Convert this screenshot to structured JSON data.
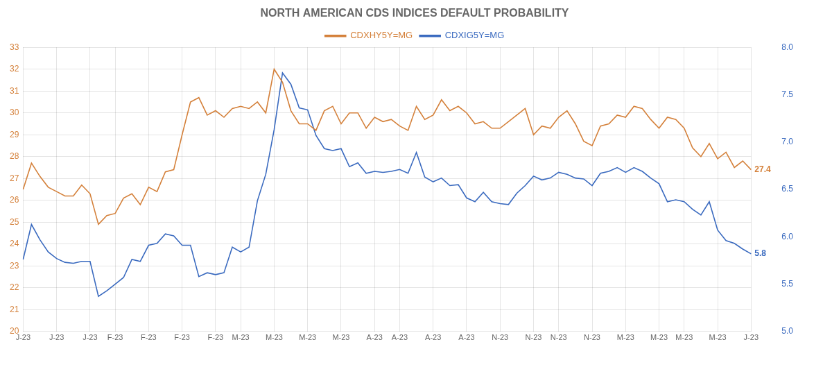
{
  "chart_data": {
    "type": "line",
    "title": "NORTH AMERICAN CDS INDICES DEFAULT PROBABILITY",
    "categories": [
      "J-23",
      null,
      null,
      null,
      "J-23",
      null,
      null,
      null,
      "J-23",
      null,
      null,
      "F-23",
      null,
      null,
      null,
      "F-23",
      null,
      null,
      null,
      "F-23",
      null,
      null,
      null,
      "F-23",
      null,
      null,
      "M-23",
      null,
      null,
      null,
      "M-23",
      null,
      null,
      null,
      "M-23",
      null,
      null,
      null,
      "M-23",
      null,
      null,
      null,
      "A-23",
      null,
      null,
      "A-23",
      null,
      null,
      null,
      "A-23",
      null,
      null,
      null,
      "A-23",
      null,
      null,
      null,
      "N-23",
      null,
      null,
      null,
      "N-23",
      null,
      null,
      "N-23",
      null,
      null,
      null,
      "N-23",
      null,
      null,
      null,
      "M-23",
      null,
      null,
      null,
      "M-23",
      null,
      null,
      "M-23",
      null,
      null,
      null,
      "M-23",
      null,
      null,
      null,
      "J-23"
    ],
    "series": [
      {
        "name": "CDXHY5Y=MG",
        "color": "#d4803a",
        "axis": "y",
        "values": [
          26.5,
          27.7,
          27.1,
          26.6,
          26.4,
          26.2,
          26.2,
          26.7,
          26.3,
          24.9,
          25.3,
          25.4,
          26.1,
          26.3,
          25.8,
          26.6,
          26.4,
          27.3,
          27.4,
          29.0,
          30.5,
          30.7,
          29.9,
          30.1,
          29.8,
          30.2,
          30.3,
          30.2,
          30.5,
          30.0,
          32.0,
          31.4,
          30.1,
          29.5,
          29.5,
          29.2,
          30.1,
          30.3,
          29.5,
          30.0,
          30.0,
          29.3,
          29.8,
          29.6,
          29.7,
          29.4,
          29.2,
          30.3,
          29.7,
          29.9,
          30.6,
          30.1,
          30.3,
          30.0,
          29.5,
          29.6,
          29.3,
          29.3,
          29.6,
          29.9,
          30.2,
          29.0,
          29.4,
          29.3,
          29.8,
          30.1,
          29.5,
          28.7,
          28.5,
          29.4,
          29.5,
          29.9,
          29.8,
          30.3,
          30.2,
          29.7,
          29.3,
          29.8,
          29.7,
          29.3,
          28.4,
          28.0,
          28.6,
          27.9,
          28.2,
          27.5,
          27.8,
          27.4
        ]
      },
      {
        "name": "CDXIG5Y=MG",
        "color": "#3a6abf",
        "axis": "y2",
        "values": [
          5.76,
          6.13,
          5.97,
          5.84,
          5.77,
          5.73,
          5.72,
          5.74,
          5.74,
          5.37,
          5.43,
          5.5,
          5.57,
          5.76,
          5.74,
          5.91,
          5.93,
          6.03,
          6.01,
          5.91,
          5.91,
          5.58,
          5.62,
          5.6,
          5.62,
          5.89,
          5.84,
          5.89,
          6.38,
          6.66,
          7.13,
          7.73,
          7.61,
          7.36,
          7.34,
          7.07,
          6.93,
          6.91,
          6.93,
          6.74,
          6.78,
          6.67,
          6.69,
          6.68,
          6.69,
          6.71,
          6.67,
          6.89,
          6.63,
          6.58,
          6.62,
          6.54,
          6.55,
          6.41,
          6.37,
          6.47,
          6.37,
          6.35,
          6.34,
          6.46,
          6.54,
          6.64,
          6.6,
          6.62,
          6.68,
          6.66,
          6.62,
          6.61,
          6.54,
          6.67,
          6.69,
          6.73,
          6.68,
          6.73,
          6.69,
          6.62,
          6.56,
          6.37,
          6.39,
          6.37,
          6.29,
          6.23,
          6.37,
          6.07,
          5.96,
          5.93,
          5.87,
          5.82
        ]
      }
    ],
    "ylim": [
      20,
      33
    ],
    "yticks": [
      20,
      21,
      22,
      23,
      24,
      25,
      26,
      27,
      28,
      29,
      30,
      31,
      32,
      33
    ],
    "y2lim": [
      5.0,
      8.0
    ],
    "y2ticks": [
      {
        "value": 5.0,
        "label": "5.0"
      },
      5.5,
      {
        "value": 6.0,
        "label": "6.0"
      },
      6.5,
      {
        "value": 7.0,
        "label": "7.0"
      },
      7.5,
      {
        "value": 8.0,
        "label": "8.0"
      }
    ],
    "grid": true,
    "legend": "top",
    "annotations": [
      {
        "text": "27.4",
        "y": 27.4,
        "axis": "y",
        "color": "#d4803a"
      },
      {
        "text": "5.8",
        "y": 5.82,
        "axis": "y2",
        "color": "#3a6abf"
      }
    ]
  }
}
